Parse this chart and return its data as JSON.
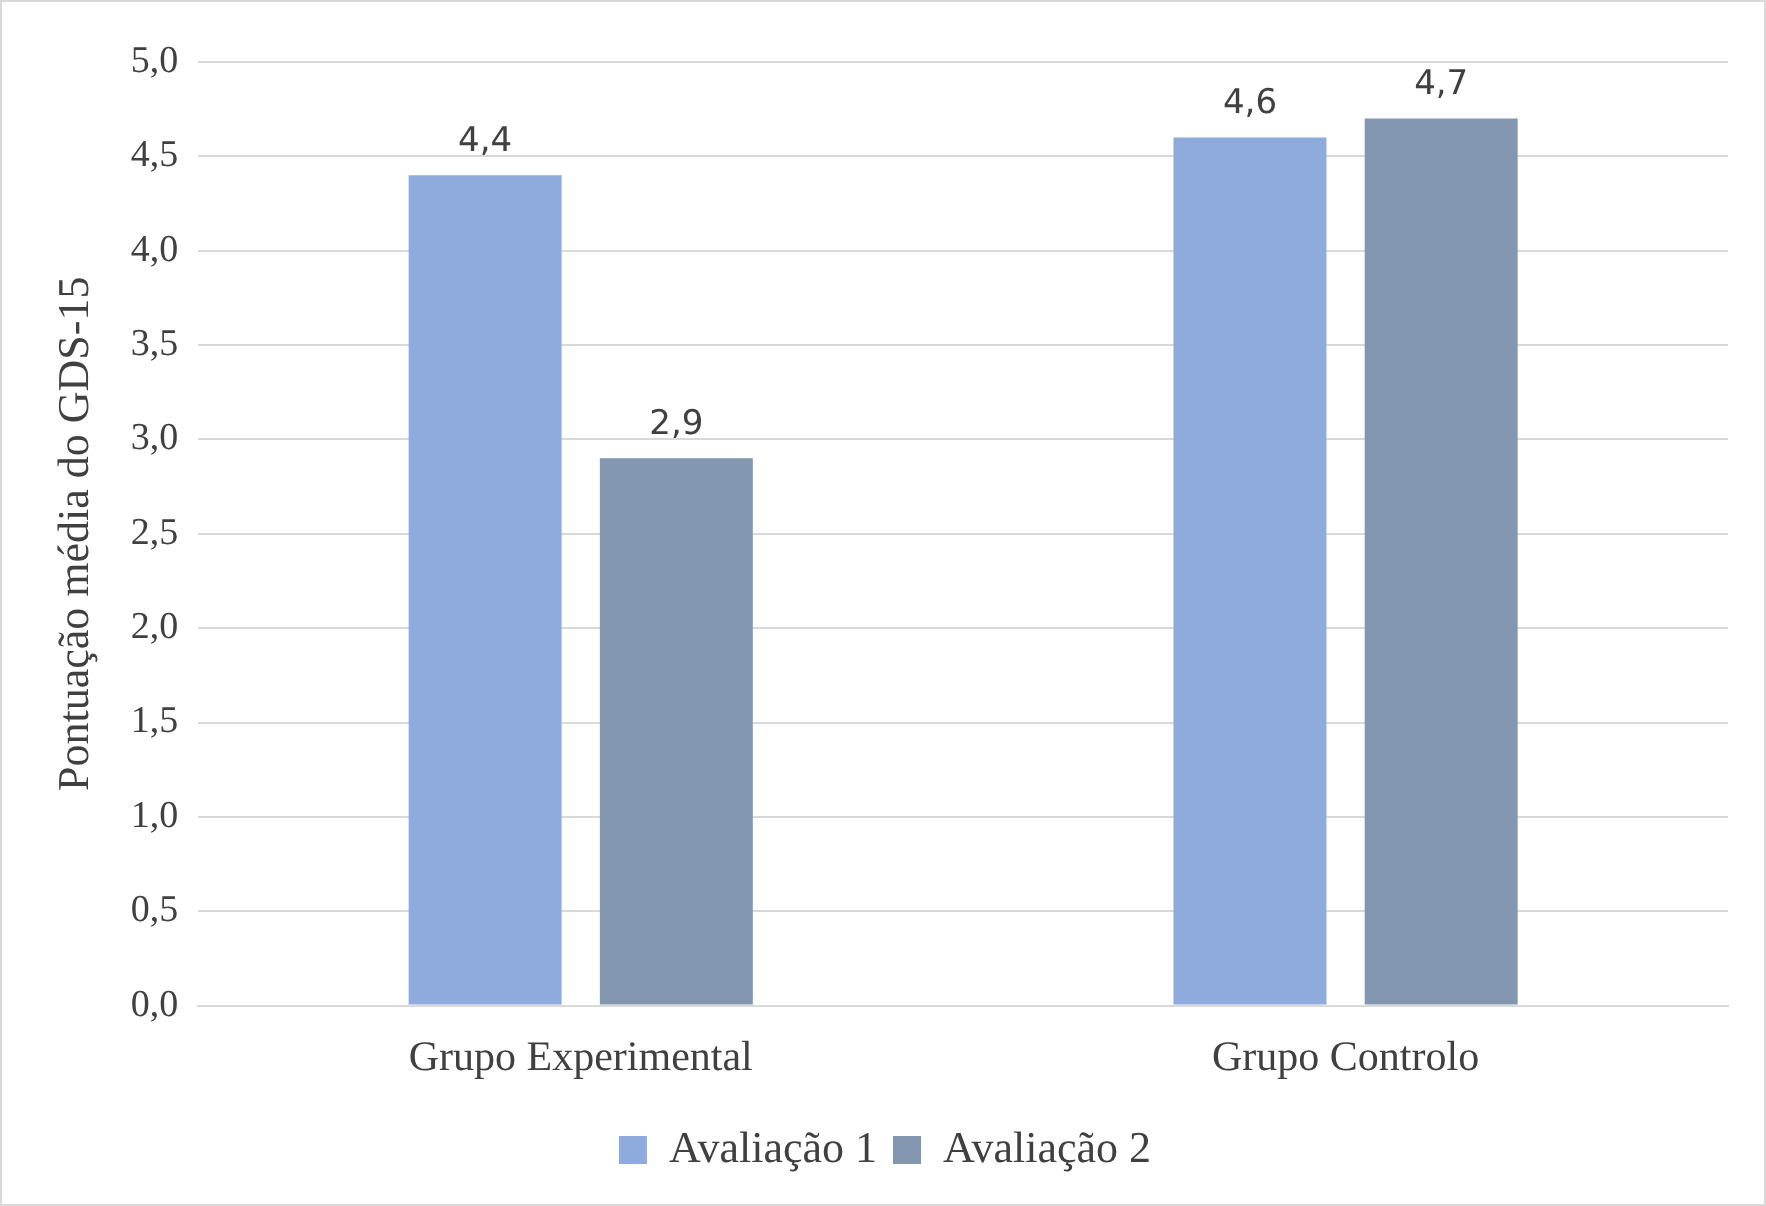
{
  "chart_data": {
    "type": "bar",
    "ylabel": "Pontuação média do GDS-15",
    "categories": [
      "Grupo Experimental",
      "Grupo Controlo"
    ],
    "series": [
      {
        "name": "Avaliação 1",
        "color": "#8faadc",
        "values": [
          4.4,
          4.6
        ],
        "value_labels": [
          "4,4",
          "4,6"
        ]
      },
      {
        "name": "Avaliação 2",
        "color": "#8497b0",
        "values": [
          2.9,
          4.7
        ],
        "value_labels": [
          "2,9",
          "4,7"
        ]
      }
    ],
    "ylim": [
      0,
      5
    ],
    "yticks": [
      {
        "value": 0,
        "label": "0,0"
      },
      {
        "value": 0.5,
        "label": "0,5"
      },
      {
        "value": 1,
        "label": "1,0"
      },
      {
        "value": 1.5,
        "label": "1,5"
      },
      {
        "value": 2,
        "label": "2,0"
      },
      {
        "value": 2.5,
        "label": "2,5"
      },
      {
        "value": 3,
        "label": "3,0"
      },
      {
        "value": 3.5,
        "label": "3,5"
      },
      {
        "value": 4,
        "label": "4,0"
      },
      {
        "value": 4.5,
        "label": "4,5"
      },
      {
        "value": 5,
        "label": "5,0"
      }
    ],
    "grid": "y",
    "legend": "bottom"
  }
}
